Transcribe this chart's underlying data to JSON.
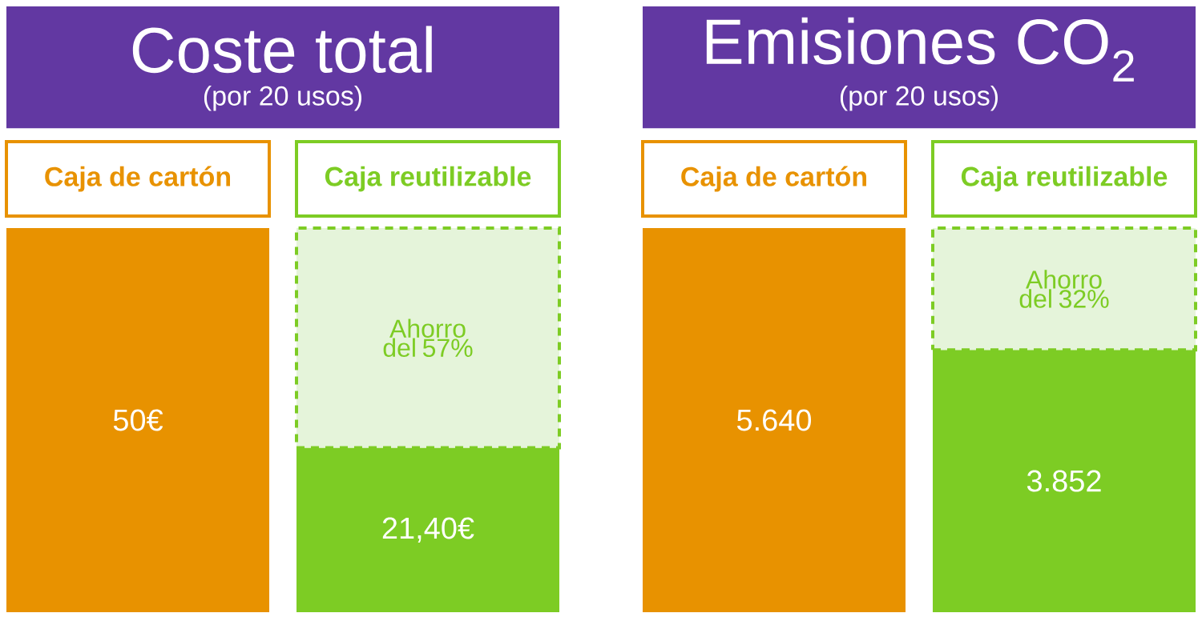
{
  "chart_data": [
    {
      "type": "bar",
      "stacked": true,
      "title": "Coste total",
      "subtitle": "(por 20 usos)",
      "categories": [
        "Caja de cartón",
        "Caja reutilizable"
      ],
      "series": [
        {
          "values": [
            50,
            21.4
          ],
          "colors": [
            "#e89200",
            "#7dcc24"
          ],
          "value_labels": [
            "50€",
            "21,40€"
          ]
        },
        {
          "values": [
            null,
            28.6
          ],
          "colors": [
            null,
            "#e5f4da"
          ],
          "line_style": "dashed",
          "value_labels": [
            null,
            "Ahorro del 57%"
          ]
        }
      ]
    },
    {
      "type": "bar",
      "stacked": true,
      "title": "Emisiones CO$_{2}$",
      "subtitle": "(por 20 usos)",
      "categories": [
        "Caja de cartón",
        "Caja reutilizable"
      ],
      "series": [
        {
          "values": [
            5640,
            3852
          ],
          "colors": [
            "#e89200",
            "#7dcc24"
          ],
          "value_labels": [
            "5.640",
            "3.852"
          ]
        },
        {
          "values": [
            null,
            1788
          ],
          "colors": [
            null,
            "#e5f4da"
          ],
          "line_style": "dashed",
          "value_labels": [
            null,
            "Ahorro del 32%"
          ]
        }
      ]
    }
  ]
}
